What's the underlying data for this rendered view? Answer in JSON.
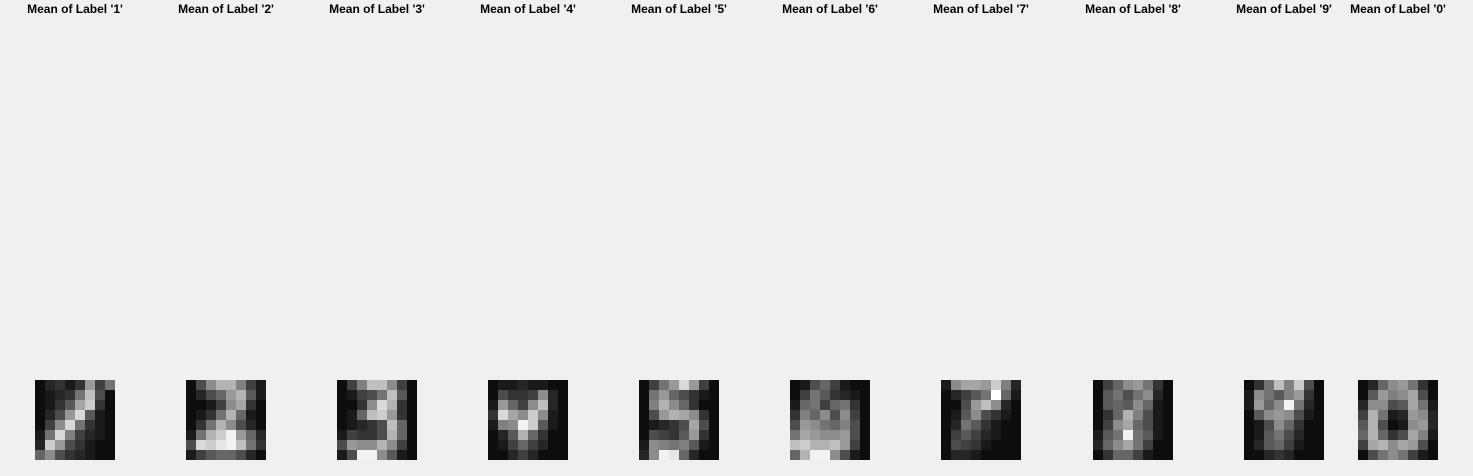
{
  "chart_data": [
    {
      "type": "heatmap",
      "title": "Mean of Label '1'",
      "colormap": "gray",
      "grid": false,
      "z": [
        [
          0.05,
          0.15,
          0.2,
          0.1,
          0.2,
          0.6,
          0.25,
          0.45
        ],
        [
          0.05,
          0.1,
          0.15,
          0.2,
          0.45,
          0.75,
          0.3,
          0.05
        ],
        [
          0.05,
          0.1,
          0.2,
          0.35,
          0.65,
          0.8,
          0.2,
          0.05
        ],
        [
          0.05,
          0.15,
          0.3,
          0.6,
          0.85,
          0.35,
          0.1,
          0.05
        ],
        [
          0.05,
          0.25,
          0.55,
          0.85,
          0.45,
          0.2,
          0.1,
          0.05
        ],
        [
          0.1,
          0.45,
          0.85,
          0.5,
          0.25,
          0.15,
          0.1,
          0.05
        ],
        [
          0.15,
          0.8,
          0.6,
          0.3,
          0.2,
          0.1,
          0.05,
          0.05
        ],
        [
          0.4,
          0.55,
          0.3,
          0.2,
          0.15,
          0.1,
          0.05,
          0.05
        ]
      ]
    },
    {
      "type": "heatmap",
      "title": "Mean of Label '2'",
      "colormap": "gray",
      "grid": false,
      "z": [
        [
          0.05,
          0.3,
          0.55,
          0.7,
          0.7,
          0.5,
          0.25,
          0.1
        ],
        [
          0.05,
          0.15,
          0.3,
          0.4,
          0.6,
          0.7,
          0.35,
          0.1
        ],
        [
          0.05,
          0.05,
          0.1,
          0.25,
          0.55,
          0.65,
          0.2,
          0.05
        ],
        [
          0.05,
          0.1,
          0.2,
          0.45,
          0.7,
          0.4,
          0.1,
          0.05
        ],
        [
          0.05,
          0.2,
          0.45,
          0.7,
          0.55,
          0.3,
          0.15,
          0.05
        ],
        [
          0.1,
          0.45,
          0.7,
          0.8,
          0.95,
          0.6,
          0.4,
          0.15
        ],
        [
          0.3,
          0.85,
          0.8,
          0.9,
          0.95,
          0.75,
          0.45,
          0.2
        ],
        [
          0.1,
          0.25,
          0.35,
          0.4,
          0.4,
          0.3,
          0.15,
          0.05
        ]
      ]
    },
    {
      "type": "heatmap",
      "title": "Mean of Label '3'",
      "colormap": "gray",
      "grid": false,
      "z": [
        [
          0.05,
          0.25,
          0.5,
          0.75,
          0.75,
          0.55,
          0.25,
          0.05
        ],
        [
          0.05,
          0.1,
          0.25,
          0.3,
          0.45,
          0.75,
          0.35,
          0.05
        ],
        [
          0.05,
          0.05,
          0.2,
          0.55,
          0.85,
          0.7,
          0.2,
          0.05
        ],
        [
          0.05,
          0.1,
          0.4,
          0.75,
          0.8,
          0.6,
          0.2,
          0.05
        ],
        [
          0.05,
          0.1,
          0.15,
          0.2,
          0.3,
          0.75,
          0.4,
          0.05
        ],
        [
          0.1,
          0.25,
          0.2,
          0.2,
          0.3,
          0.7,
          0.4,
          0.05
        ],
        [
          0.3,
          0.6,
          0.55,
          0.55,
          0.7,
          0.55,
          0.25,
          0.05
        ],
        [
          0.1,
          0.3,
          0.95,
          0.95,
          0.55,
          0.35,
          0.1,
          0.05
        ]
      ]
    },
    {
      "type": "heatmap",
      "title": "Mean of Label '4'",
      "colormap": "gray",
      "grid": false,
      "z": [
        [
          0.05,
          0.1,
          0.1,
          0.15,
          0.1,
          0.1,
          0.05,
          0.05
        ],
        [
          0.05,
          0.3,
          0.2,
          0.2,
          0.25,
          0.55,
          0.15,
          0.05
        ],
        [
          0.1,
          0.6,
          0.4,
          0.25,
          0.55,
          0.75,
          0.15,
          0.05
        ],
        [
          0.2,
          0.85,
          0.65,
          0.55,
          0.8,
          0.55,
          0.1,
          0.05
        ],
        [
          0.1,
          0.5,
          0.55,
          0.95,
          0.8,
          0.35,
          0.1,
          0.05
        ],
        [
          0.05,
          0.15,
          0.35,
          0.7,
          0.4,
          0.2,
          0.05,
          0.05
        ],
        [
          0.05,
          0.1,
          0.25,
          0.4,
          0.25,
          0.15,
          0.05,
          0.05
        ],
        [
          0.05,
          0.05,
          0.15,
          0.25,
          0.15,
          0.05,
          0.05,
          0.05
        ]
      ]
    },
    {
      "type": "heatmap",
      "title": "Mean of Label '5'",
      "colormap": "gray",
      "grid": false,
      "z": [
        [
          0.05,
          0.25,
          0.45,
          0.6,
          0.85,
          0.6,
          0.25,
          0.05
        ],
        [
          0.05,
          0.45,
          0.6,
          0.4,
          0.3,
          0.2,
          0.1,
          0.05
        ],
        [
          0.05,
          0.5,
          0.7,
          0.55,
          0.4,
          0.2,
          0.05,
          0.05
        ],
        [
          0.05,
          0.3,
          0.6,
          0.7,
          0.65,
          0.55,
          0.2,
          0.05
        ],
        [
          0.05,
          0.1,
          0.15,
          0.2,
          0.3,
          0.65,
          0.3,
          0.05
        ],
        [
          0.05,
          0.3,
          0.25,
          0.2,
          0.35,
          0.6,
          0.2,
          0.05
        ],
        [
          0.1,
          0.55,
          0.5,
          0.45,
          0.5,
          0.35,
          0.1,
          0.05
        ],
        [
          0.15,
          0.55,
          0.95,
          0.9,
          0.4,
          0.15,
          0.05,
          0.05
        ]
      ]
    },
    {
      "type": "heatmap",
      "title": "Mean of Label '6'",
      "colormap": "gray",
      "grid": false,
      "z": [
        [
          0.05,
          0.1,
          0.3,
          0.4,
          0.25,
          0.1,
          0.05,
          0.05
        ],
        [
          0.05,
          0.25,
          0.45,
          0.35,
          0.2,
          0.15,
          0.1,
          0.05
        ],
        [
          0.1,
          0.4,
          0.45,
          0.25,
          0.4,
          0.45,
          0.2,
          0.05
        ],
        [
          0.2,
          0.5,
          0.4,
          0.55,
          0.3,
          0.55,
          0.25,
          0.05
        ],
        [
          0.3,
          0.6,
          0.55,
          0.45,
          0.4,
          0.5,
          0.3,
          0.05
        ],
        [
          0.45,
          0.65,
          0.6,
          0.55,
          0.55,
          0.6,
          0.3,
          0.05
        ],
        [
          0.75,
          0.8,
          0.7,
          0.7,
          0.75,
          0.6,
          0.25,
          0.05
        ],
        [
          0.4,
          0.7,
          0.95,
          0.95,
          0.55,
          0.3,
          0.1,
          0.05
        ]
      ]
    },
    {
      "type": "heatmap",
      "title": "Mean of Label '7'",
      "colormap": "gray",
      "grid": false,
      "z": [
        [
          0.1,
          0.55,
          0.65,
          0.65,
          0.6,
          0.8,
          0.5,
          0.15
        ],
        [
          0.05,
          0.15,
          0.25,
          0.35,
          0.45,
          1.0,
          0.4,
          0.1
        ],
        [
          0.05,
          0.05,
          0.3,
          0.6,
          0.75,
          0.55,
          0.15,
          0.05
        ],
        [
          0.05,
          0.1,
          0.35,
          0.55,
          0.3,
          0.2,
          0.1,
          0.05
        ],
        [
          0.05,
          0.15,
          0.45,
          0.35,
          0.2,
          0.1,
          0.05,
          0.05
        ],
        [
          0.05,
          0.25,
          0.35,
          0.25,
          0.15,
          0.1,
          0.05,
          0.05
        ],
        [
          0.05,
          0.3,
          0.25,
          0.2,
          0.1,
          0.05,
          0.05,
          0.05
        ],
        [
          0.05,
          0.15,
          0.15,
          0.1,
          0.05,
          0.05,
          0.05,
          0.05
        ]
      ]
    },
    {
      "type": "heatmap",
      "title": "Mean of Label '8'",
      "colormap": "gray",
      "grid": false,
      "z": [
        [
          0.05,
          0.25,
          0.4,
          0.55,
          0.6,
          0.45,
          0.2,
          0.05
        ],
        [
          0.05,
          0.35,
          0.45,
          0.3,
          0.45,
          0.55,
          0.15,
          0.05
        ],
        [
          0.05,
          0.35,
          0.4,
          0.35,
          0.55,
          0.4,
          0.1,
          0.05
        ],
        [
          0.05,
          0.2,
          0.4,
          0.7,
          0.5,
          0.3,
          0.1,
          0.05
        ],
        [
          0.05,
          0.25,
          0.55,
          0.65,
          0.4,
          0.3,
          0.1,
          0.05
        ],
        [
          0.1,
          0.35,
          0.45,
          0.95,
          0.45,
          0.35,
          0.1,
          0.05
        ],
        [
          0.15,
          0.4,
          0.55,
          0.65,
          0.45,
          0.25,
          0.05,
          0.05
        ],
        [
          0.05,
          0.2,
          0.4,
          0.4,
          0.25,
          0.1,
          0.05,
          0.05
        ]
      ]
    },
    {
      "type": "heatmap",
      "title": "Mean of Label '9'",
      "colormap": "gray",
      "grid": false,
      "z": [
        [
          0.05,
          0.2,
          0.45,
          0.75,
          0.5,
          0.8,
          0.3,
          0.05
        ],
        [
          0.1,
          0.55,
          0.45,
          0.35,
          0.5,
          0.6,
          0.2,
          0.05
        ],
        [
          0.1,
          0.6,
          0.4,
          0.55,
          0.95,
          0.45,
          0.15,
          0.05
        ],
        [
          0.05,
          0.35,
          0.55,
          0.6,
          0.55,
          0.3,
          0.1,
          0.05
        ],
        [
          0.05,
          0.1,
          0.3,
          0.55,
          0.4,
          0.2,
          0.05,
          0.05
        ],
        [
          0.05,
          0.1,
          0.35,
          0.45,
          0.3,
          0.15,
          0.05,
          0.05
        ],
        [
          0.05,
          0.15,
          0.35,
          0.4,
          0.25,
          0.1,
          0.05,
          0.05
        ],
        [
          0.05,
          0.05,
          0.15,
          0.2,
          0.15,
          0.05,
          0.05,
          0.05
        ]
      ]
    },
    {
      "type": "heatmap",
      "title": "Mean of Label '0'",
      "colormap": "gray",
      "grid": false,
      "z": [
        [
          0.05,
          0.15,
          0.4,
          0.55,
          0.6,
          0.45,
          0.2,
          0.05
        ],
        [
          0.05,
          0.35,
          0.6,
          0.5,
          0.55,
          0.65,
          0.3,
          0.05
        ],
        [
          0.15,
          0.55,
          0.55,
          0.3,
          0.35,
          0.65,
          0.45,
          0.1
        ],
        [
          0.25,
          0.7,
          0.45,
          0.1,
          0.15,
          0.6,
          0.55,
          0.15
        ],
        [
          0.35,
          0.7,
          0.3,
          0.05,
          0.1,
          0.55,
          0.6,
          0.15
        ],
        [
          0.4,
          0.7,
          0.4,
          0.2,
          0.3,
          0.65,
          0.5,
          0.1
        ],
        [
          0.25,
          0.65,
          0.7,
          0.55,
          0.65,
          0.6,
          0.3,
          0.05
        ],
        [
          0.05,
          0.3,
          0.45,
          0.55,
          0.45,
          0.25,
          0.1,
          0.05
        ]
      ]
    }
  ]
}
